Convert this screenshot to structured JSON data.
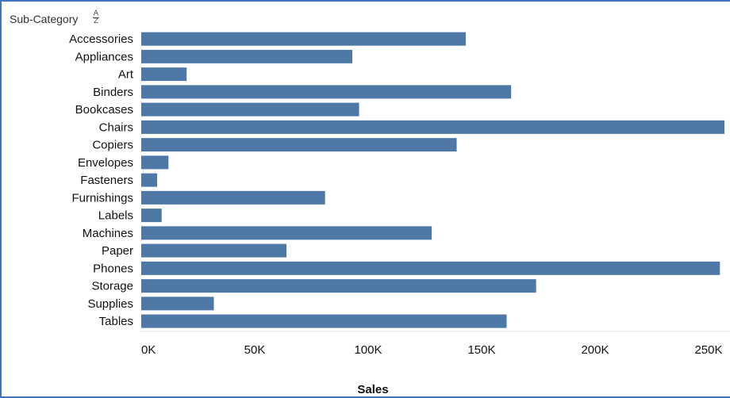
{
  "header": {
    "label": "Sub-Category"
  },
  "sort_icon": {
    "name": "sort-ascending-icon",
    "top": "A",
    "bottom": "Z"
  },
  "colors": {
    "bar": "#4e79a7",
    "frame": "#4472c4",
    "gridline": "#e6e6e6"
  },
  "chart_data": {
    "type": "bar",
    "orientation": "horizontal",
    "categories": [
      "Accessories",
      "Appliances",
      "Art",
      "Binders",
      "Bookcases",
      "Chairs",
      "Copiers",
      "Envelopes",
      "Fasteners",
      "Furnishings",
      "Labels",
      "Machines",
      "Paper",
      "Phones",
      "Storage",
      "Supplies",
      "Tables"
    ],
    "values": [
      143000,
      93000,
      20000,
      163000,
      96000,
      257000,
      139000,
      12000,
      7000,
      81000,
      9000,
      128000,
      64000,
      255000,
      174000,
      32000,
      161000
    ],
    "xlabel": "Sales",
    "ylabel": "Sub-Category",
    "xticks": [
      "0K",
      "50K",
      "100K",
      "150K",
      "200K",
      "250K"
    ],
    "xtick_values": [
      0,
      50000,
      100000,
      150000,
      200000,
      250000
    ],
    "xlim": [
      0,
      260000
    ],
    "grid": false
  }
}
